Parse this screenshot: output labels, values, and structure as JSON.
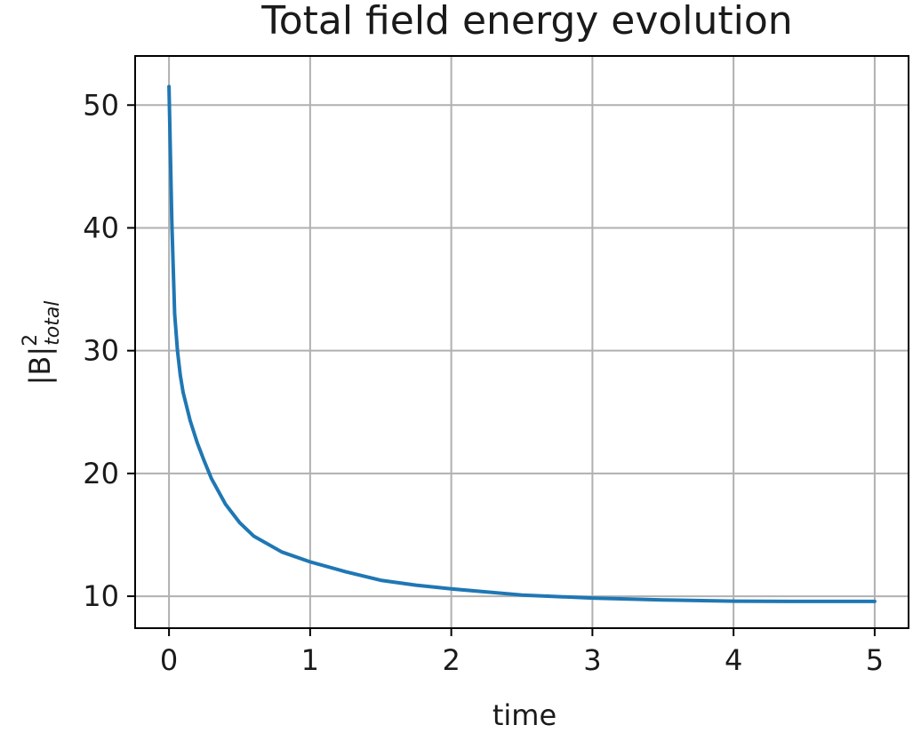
{
  "chart_data": {
    "type": "line",
    "title": "Total field energy evolution",
    "xlabel": "time",
    "ylabel": {
      "base": "|B|",
      "superscript": "2",
      "subscript": "total"
    },
    "xlim": [
      -0.24,
      5.24
    ],
    "ylim": [
      7.4,
      54
    ],
    "xticks": [
      0,
      1,
      2,
      3,
      4,
      5
    ],
    "xtick_labels": [
      "0",
      "1",
      "2",
      "3",
      "4",
      "5"
    ],
    "yticks": [
      10,
      20,
      30,
      40,
      50
    ],
    "ytick_labels": [
      "10",
      "20",
      "30",
      "40",
      "50"
    ],
    "grid": true,
    "series": [
      {
        "color": "#1f77b4",
        "x": [
          0,
          0.02,
          0.04,
          0.06,
          0.08,
          0.1,
          0.15,
          0.2,
          0.25,
          0.3,
          0.4,
          0.5,
          0.6,
          0.8,
          1.0,
          1.25,
          1.5,
          1.75,
          2.0,
          2.5,
          3.0,
          3.5,
          4.0,
          4.5,
          5.0
        ],
        "y": [
          51.5,
          40.5,
          33.0,
          30.0,
          28.0,
          26.6,
          24.3,
          22.5,
          21.0,
          19.6,
          17.5,
          16.0,
          14.9,
          13.6,
          12.8,
          12.0,
          11.3,
          10.9,
          10.6,
          10.1,
          9.85,
          9.7,
          9.6,
          9.58,
          9.58
        ]
      }
    ]
  }
}
